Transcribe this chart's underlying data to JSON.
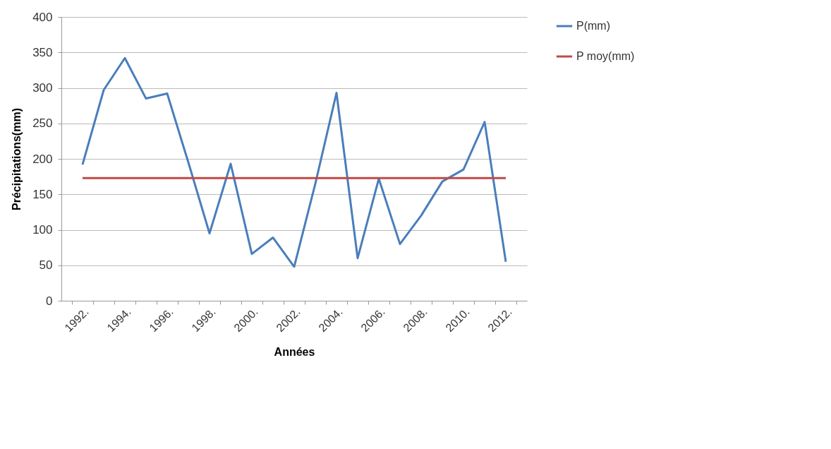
{
  "chart_data": {
    "type": "line",
    "xlabel": "Années",
    "ylabel": "Précipitations(mm)",
    "categories": [
      "1992.",
      null,
      "1994.",
      null,
      "1996.",
      null,
      "1998.",
      null,
      "2000.",
      null,
      "2002.",
      null,
      "2004.",
      null,
      "2006.",
      null,
      "2008.",
      null,
      "2010.",
      null,
      "2012."
    ],
    "series": [
      {
        "name": "P(mm)",
        "color": "#4a7ebb",
        "values": [
          192,
          297,
          342,
          285,
          292,
          195,
          95,
          193,
          66,
          89,
          48,
          165,
          293,
          60,
          172,
          80,
          120,
          168,
          185,
          252,
          55
        ]
      },
      {
        "name": "P moy(mm)",
        "color": "#be4b48",
        "values": [
          173,
          173,
          173,
          173,
          173,
          173,
          173,
          173,
          173,
          173,
          173,
          173,
          173,
          173,
          173,
          173,
          173,
          173,
          173,
          173,
          173
        ]
      }
    ],
    "ylim": [
      0,
      400
    ],
    "yticks": [
      0,
      50,
      100,
      150,
      200,
      250,
      300,
      350,
      400
    ],
    "grid": "y",
    "legend": "right",
    "marker": "none",
    "line_style": "solid"
  }
}
